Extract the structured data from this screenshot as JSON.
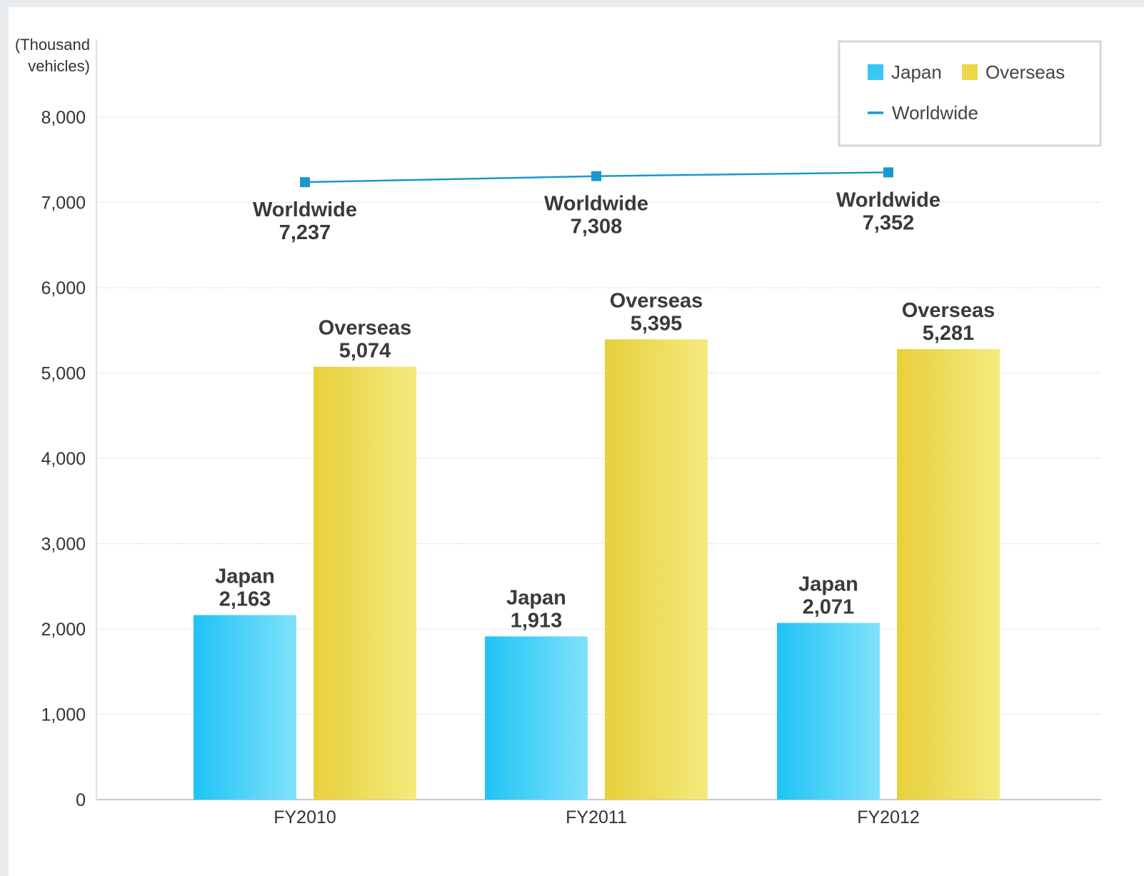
{
  "chart_data": {
    "type": "bar",
    "unit_label": [
      "(Thousand",
      "vehicles)"
    ],
    "categories": [
      "FY2010",
      "FY2011",
      "FY2012"
    ],
    "yticks": [
      "0",
      "1,000",
      "2,000",
      "3,000",
      "4,000",
      "5,000",
      "6,000",
      "7,000",
      "8,000"
    ],
    "ylim": [
      0,
      8000
    ],
    "grid": true,
    "legend_position": "top-right",
    "series": [
      {
        "name": "Japan",
        "kind": "bar",
        "values": [
          2163,
          1913,
          2071
        ],
        "labels": [
          "2,163",
          "1,913",
          "2,071"
        ],
        "color": "#38c8f2"
      },
      {
        "name": "Overseas",
        "kind": "bar",
        "values": [
          5074,
          5395,
          5281
        ],
        "labels": [
          "5,074",
          "5,395",
          "5,281"
        ],
        "color": "#ecd84a"
      },
      {
        "name": "Worldwide",
        "kind": "line",
        "values": [
          7237,
          7308,
          7352
        ],
        "labels": [
          "7,237",
          "7,308",
          "7,352"
        ],
        "color": "#1a97cf"
      }
    ]
  }
}
